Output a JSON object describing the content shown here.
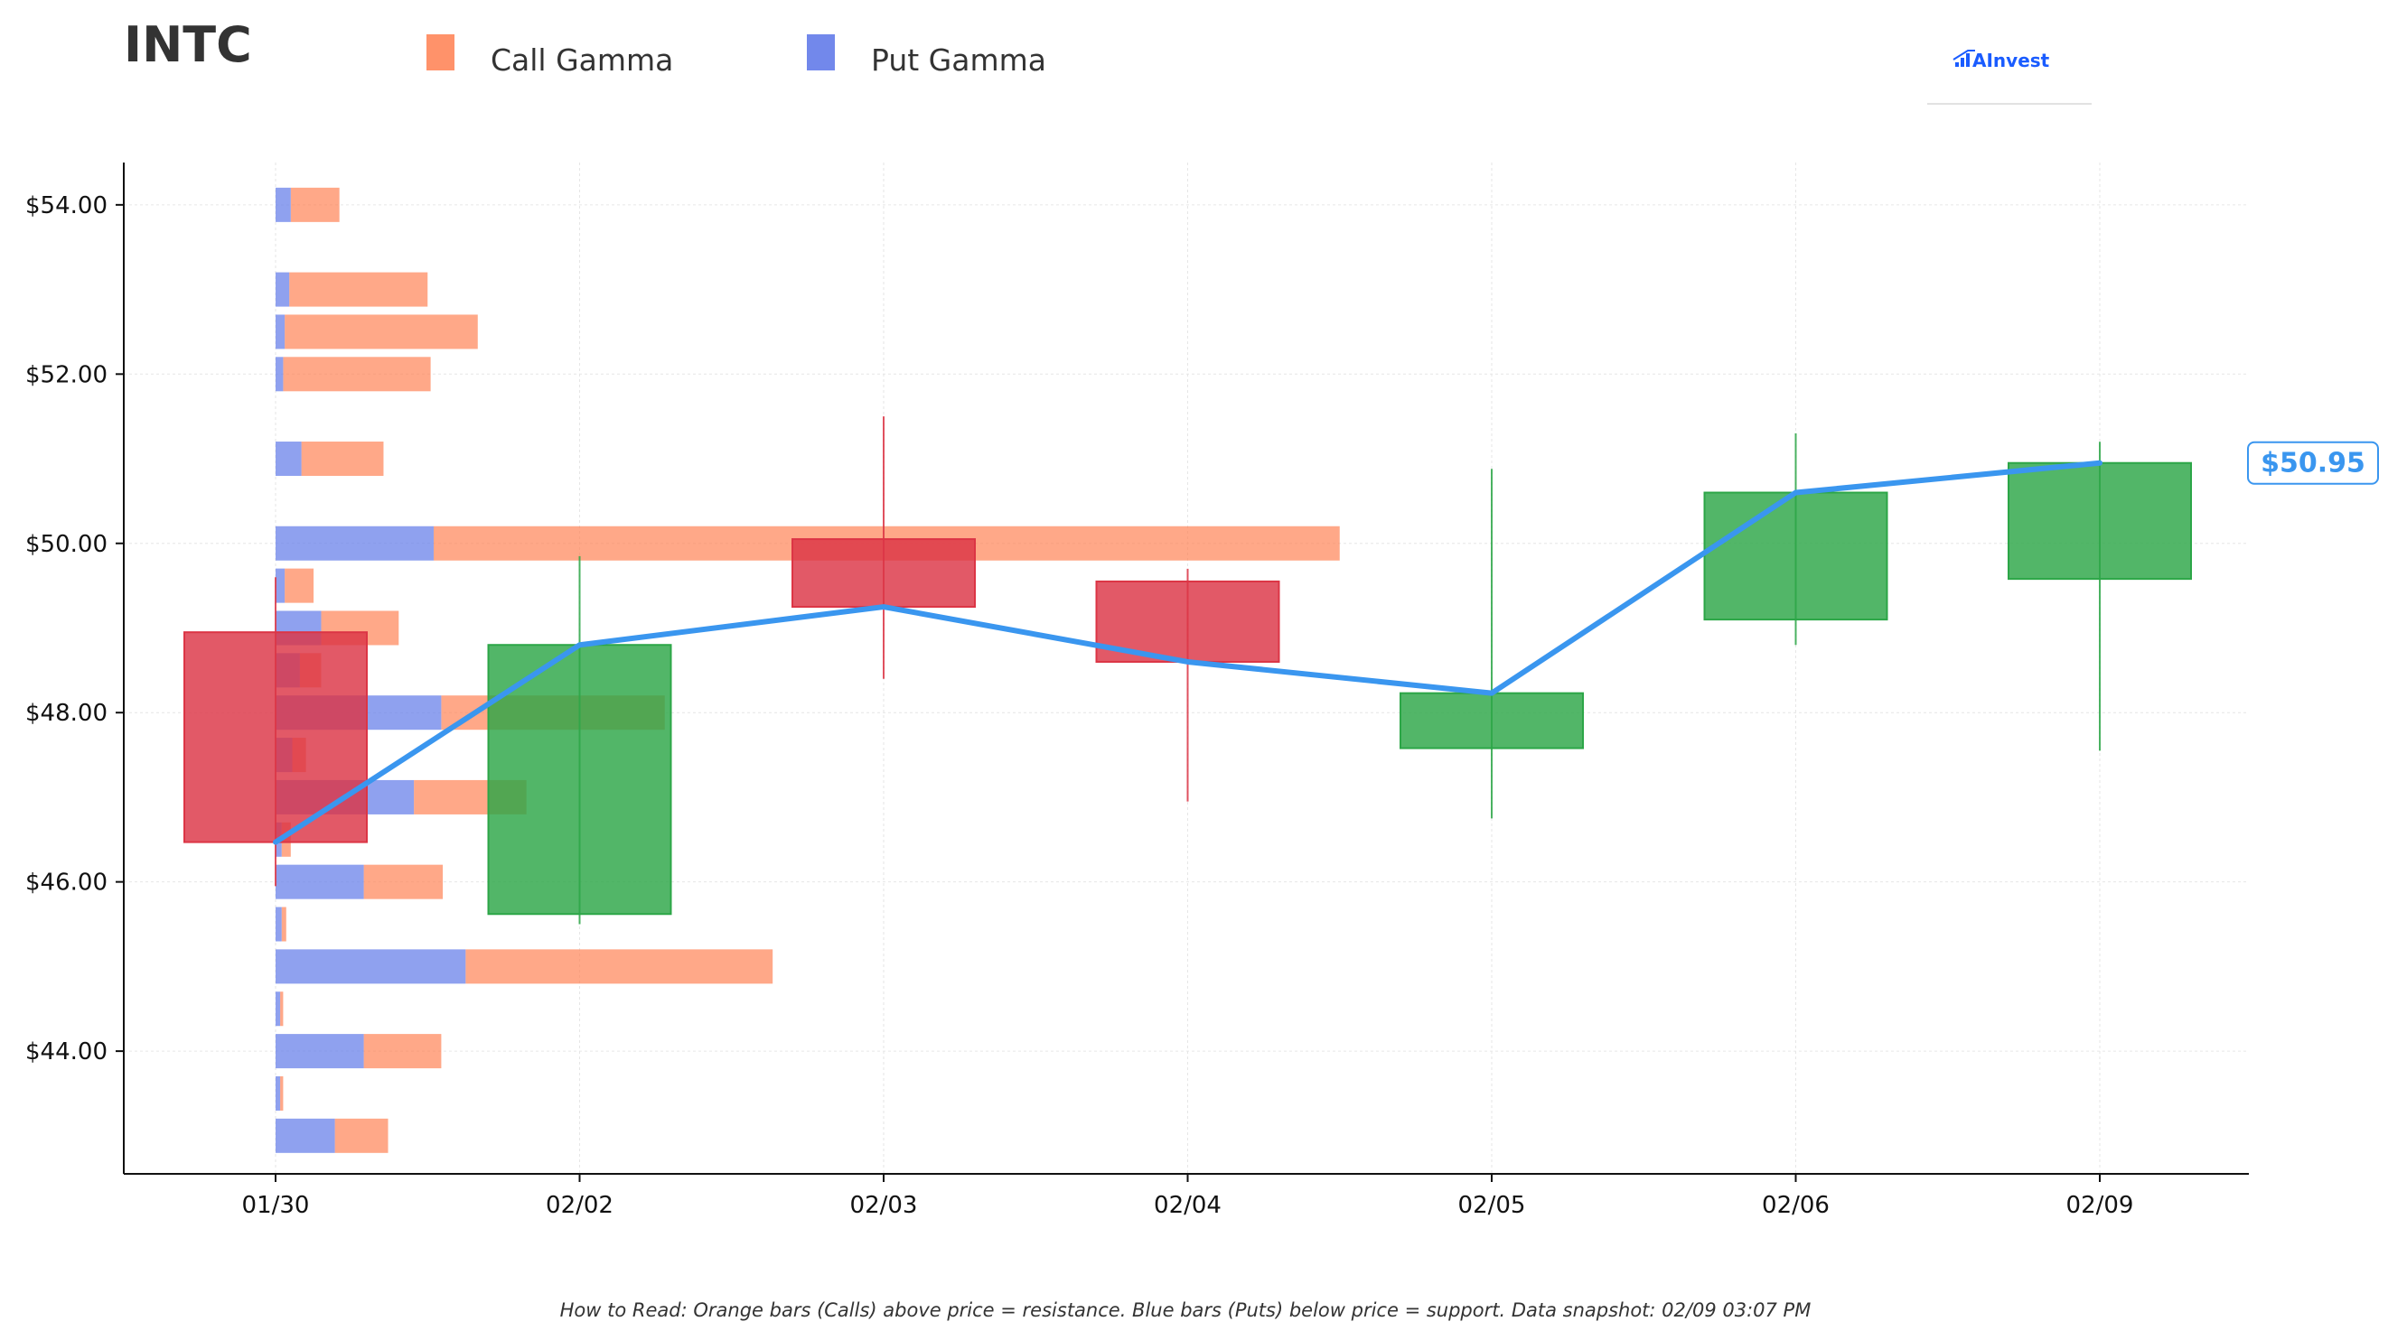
{
  "ticker": "INTC",
  "legend": {
    "call": "Call Gamma",
    "put": "Put Gamma"
  },
  "logo": "AInvest",
  "footnote": "How to Read: Orange bars (Calls) above price = resistance. Blue bars (Puts) below price = support. Data snapshot: 02/09 03:07 PM",
  "colors": {
    "call": "#FF7F50",
    "put": "#6A82EA",
    "up": "#2CA647",
    "down": "#DC3545",
    "line": "#3A96EF",
    "logo": "#1A5CFF"
  },
  "chart_data": {
    "type": "candlestick",
    "x_categories": [
      "01/30",
      "02/02",
      "02/03",
      "02/04",
      "02/05",
      "02/06",
      "02/09"
    ],
    "ylim": [
      42.55,
      54.5
    ],
    "y_ticks": [
      {
        "value": 44,
        "label": "$44.00"
      },
      {
        "value": 46,
        "label": "$46.00"
      },
      {
        "value": 48,
        "label": "$48.00"
      },
      {
        "value": 50,
        "label": "$50.00"
      },
      {
        "value": 52,
        "label": "$52.00"
      },
      {
        "value": 54,
        "label": "$54.00"
      }
    ],
    "grid": true,
    "candles": [
      {
        "date": "01/30",
        "open": 48.95,
        "high": 49.6,
        "low": 45.95,
        "close": 46.47
      },
      {
        "date": "02/02",
        "open": 45.62,
        "high": 49.85,
        "low": 45.5,
        "close": 48.8
      },
      {
        "date": "02/03",
        "open": 50.05,
        "high": 51.5,
        "low": 48.4,
        "close": 49.25
      },
      {
        "date": "02/04",
        "open": 49.55,
        "high": 49.7,
        "low": 46.95,
        "close": 48.6
      },
      {
        "date": "02/05",
        "open": 47.58,
        "high": 50.88,
        "low": 46.75,
        "close": 48.23
      },
      {
        "date": "02/06",
        "open": 49.1,
        "high": 51.3,
        "low": 48.8,
        "close": 50.6
      },
      {
        "date": "02/09",
        "open": 49.58,
        "high": 51.2,
        "low": 47.55,
        "close": 50.95
      }
    ],
    "close_line": [
      46.47,
      48.8,
      49.25,
      48.6,
      48.23,
      50.6,
      50.95
    ],
    "last_price_label": "$50.95",
    "gamma_bars": {
      "units": "x-axis category widths starting at 01/30",
      "levels": [
        {
          "strike": 54.0,
          "put": 0.05,
          "call": 0.16
        },
        {
          "strike": 53.0,
          "put": 0.045,
          "call": 0.455
        },
        {
          "strike": 52.5,
          "put": 0.03,
          "call": 0.635
        },
        {
          "strike": 52.0,
          "put": 0.025,
          "call": 0.485
        },
        {
          "strike": 51.0,
          "put": 0.085,
          "call": 0.27
        },
        {
          "strike": 50.0,
          "put": 0.52,
          "call": 2.98
        },
        {
          "strike": 49.5,
          "put": 0.03,
          "call": 0.095
        },
        {
          "strike": 49.0,
          "put": 0.15,
          "call": 0.255
        },
        {
          "strike": 48.5,
          "put": 0.08,
          "call": 0.07
        },
        {
          "strike": 48.0,
          "put": 0.545,
          "call": 0.735
        },
        {
          "strike": 47.5,
          "put": 0.055,
          "call": 0.045
        },
        {
          "strike": 47.0,
          "put": 0.455,
          "call": 0.37
        },
        {
          "strike": 46.5,
          "put": 0.02,
          "call": 0.03
        },
        {
          "strike": 46.0,
          "put": 0.29,
          "call": 0.26
        },
        {
          "strike": 45.5,
          "put": 0.02,
          "call": 0.015
        },
        {
          "strike": 45.0,
          "put": 0.625,
          "call": 1.01
        },
        {
          "strike": 44.5,
          "put": 0.015,
          "call": 0.01
        },
        {
          "strike": 44.0,
          "put": 0.29,
          "call": 0.255
        },
        {
          "strike": 43.5,
          "put": 0.015,
          "call": 0.01
        },
        {
          "strike": 43.0,
          "put": 0.195,
          "call": 0.175
        }
      ]
    }
  }
}
